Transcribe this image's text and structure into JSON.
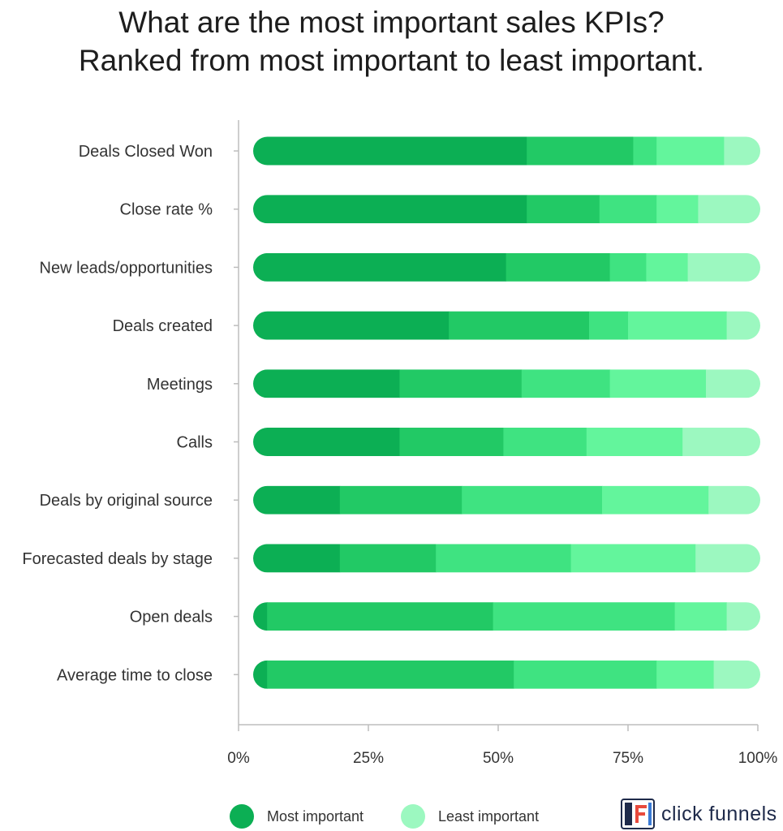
{
  "title": {
    "line1": "What are the most important sales KPIs?",
    "line2": "Ranked from most important to least important."
  },
  "chart_data": {
    "type": "bar",
    "orientation": "horizontal",
    "stacked": true,
    "categories": [
      "Deals Closed Won",
      "Close rate %",
      "New leads/opportunities",
      "Deals created",
      "Meetings",
      "Calls",
      "Deals by original source",
      "Forecasted deals by stage",
      "Open deals",
      "Average time to close"
    ],
    "xlim": [
      0,
      100
    ],
    "x_ticks": [
      "0%",
      "25%",
      "50%",
      "75%",
      "100%"
    ],
    "series": [
      {
        "values": [
          55.5,
          55.5,
          51.5,
          40.5,
          31,
          31,
          19.5,
          19.5,
          5.5,
          5.5
        ]
      },
      {
        "values": [
          20.5,
          14,
          20,
          27,
          23.5,
          20,
          23.5,
          18.5,
          43.5,
          47.5
        ]
      },
      {
        "values": [
          4.5,
          11,
          7,
          7.5,
          17,
          16,
          27,
          26,
          35,
          27.5
        ]
      },
      {
        "values": [
          13,
          8,
          8,
          19,
          18.5,
          18.5,
          20.5,
          24,
          10,
          11
        ]
      },
      {
        "values": [
          6.5,
          11.5,
          13.5,
          6,
          10,
          14.5,
          9.5,
          12,
          6,
          8.5
        ]
      }
    ],
    "colors": [
      "#0caf54",
      "#22c965",
      "#3fe381",
      "#63f59c",
      "#9cf8c0"
    ],
    "legend": [
      {
        "label": "Most important",
        "color": "#0caf54"
      },
      {
        "label": "Least important",
        "color": "#9cf8c0"
      }
    ],
    "legend_position": "bottom"
  },
  "branding": {
    "logo_text": "click funnels"
  }
}
